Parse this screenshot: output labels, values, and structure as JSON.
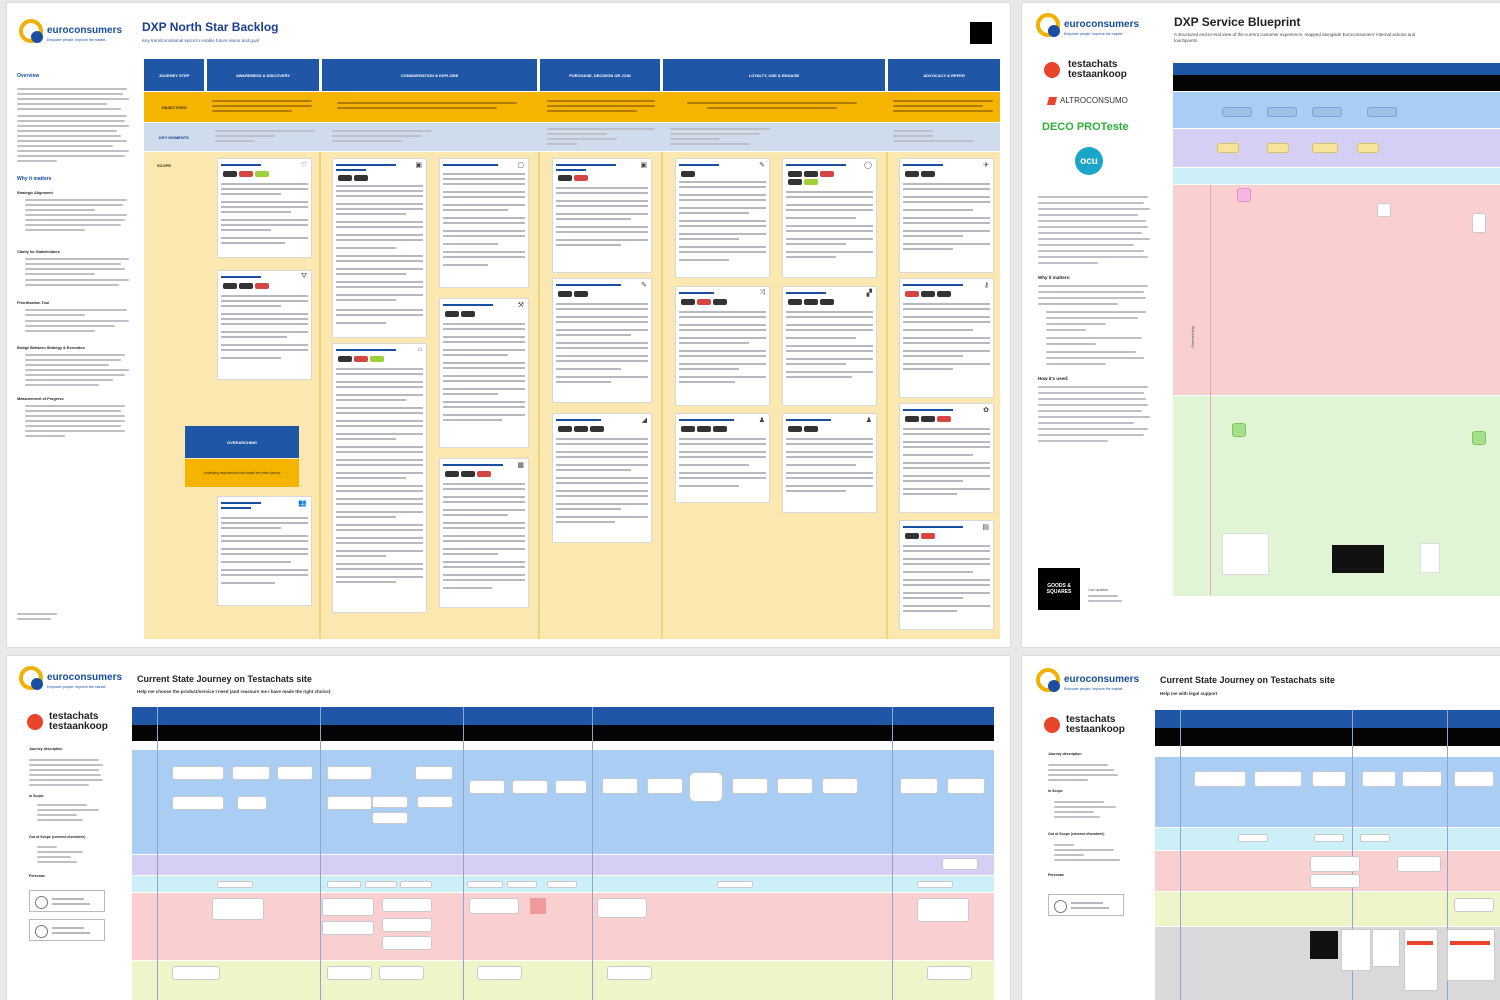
{
  "brand": {
    "logo_text": "euroconsumers",
    "tagline": "Empower people. Improve the market.",
    "testachats": "testachats",
    "testaankoop": "testaankoop",
    "altroconsumo": "ALTROCONSUMO",
    "decoproteste": "DECO PROTeste",
    "ocu": "ocu",
    "goods_squares": "GOODS & SQUARES"
  },
  "board1": {
    "title": "DXP North Star Backlog",
    "subtitle": "Key transformational epics to enable future vision and goal",
    "overview_heading": "Overview",
    "why_heading": "Why it matters",
    "sections": [
      "Strategic Alignment",
      "Clarity for Stakeholders",
      "Prioritisation Tool",
      "Bridge Between Strategy & Execution",
      "Measurement of Progress"
    ],
    "phases": [
      "JOURNEY STEP",
      "AWARENESS & DISCOVERY",
      "CONSIDERATION & EXPLORE",
      "PURCHASE, DECISION OR JOIN",
      "LOYALTY, USE & ENGAGE",
      "ADVOCACY & REFER"
    ],
    "row_labels": [
      "OBJECTIVES",
      "KEY MOMENTS",
      "SCOPE"
    ],
    "overarching_label": "OVERARCHING",
    "overarching_desc": "Underlying requirements that impact the entire journey"
  },
  "board2": {
    "title": "DXP Service Blueprint",
    "subtitle": "A structured end-to-end view of the current customer experience, mapped alongside Euroconsumers' internal actions and touchpoints.",
    "why_heading": "Why it matters:",
    "how_heading": "How it's used:",
    "last_updated": "Last updated",
    "side_label": "Overarching"
  },
  "board3": {
    "title": "Current State Journey on Testachats site",
    "subtitle": "Help me choose the product/service I need (and reassure me I have made the right choice)",
    "journey_desc": "Journey description",
    "in_scope": "In Scope",
    "out_scope": "Out of Scope (covered elsewhere)",
    "personas": "Personas"
  },
  "board4": {
    "title": "Current State Journey on Testachats site",
    "subtitle": "Help me with legal support",
    "journey_desc": "Journey description",
    "in_scope": "In Scope",
    "out_scope": "Out of Scope (covered elsewhere)",
    "personas": "Personas"
  },
  "colors": {
    "brand_blue": "#1f56a6",
    "brand_yellow": "#f5b400",
    "lane_blue": "#aacdf4",
    "lane_purple": "#cfc9ef",
    "lane_cyan": "#cdeff7",
    "lane_pink": "#f9caca",
    "lane_green": "#dff5d6",
    "lane_yellow": "#f2f5c7"
  }
}
